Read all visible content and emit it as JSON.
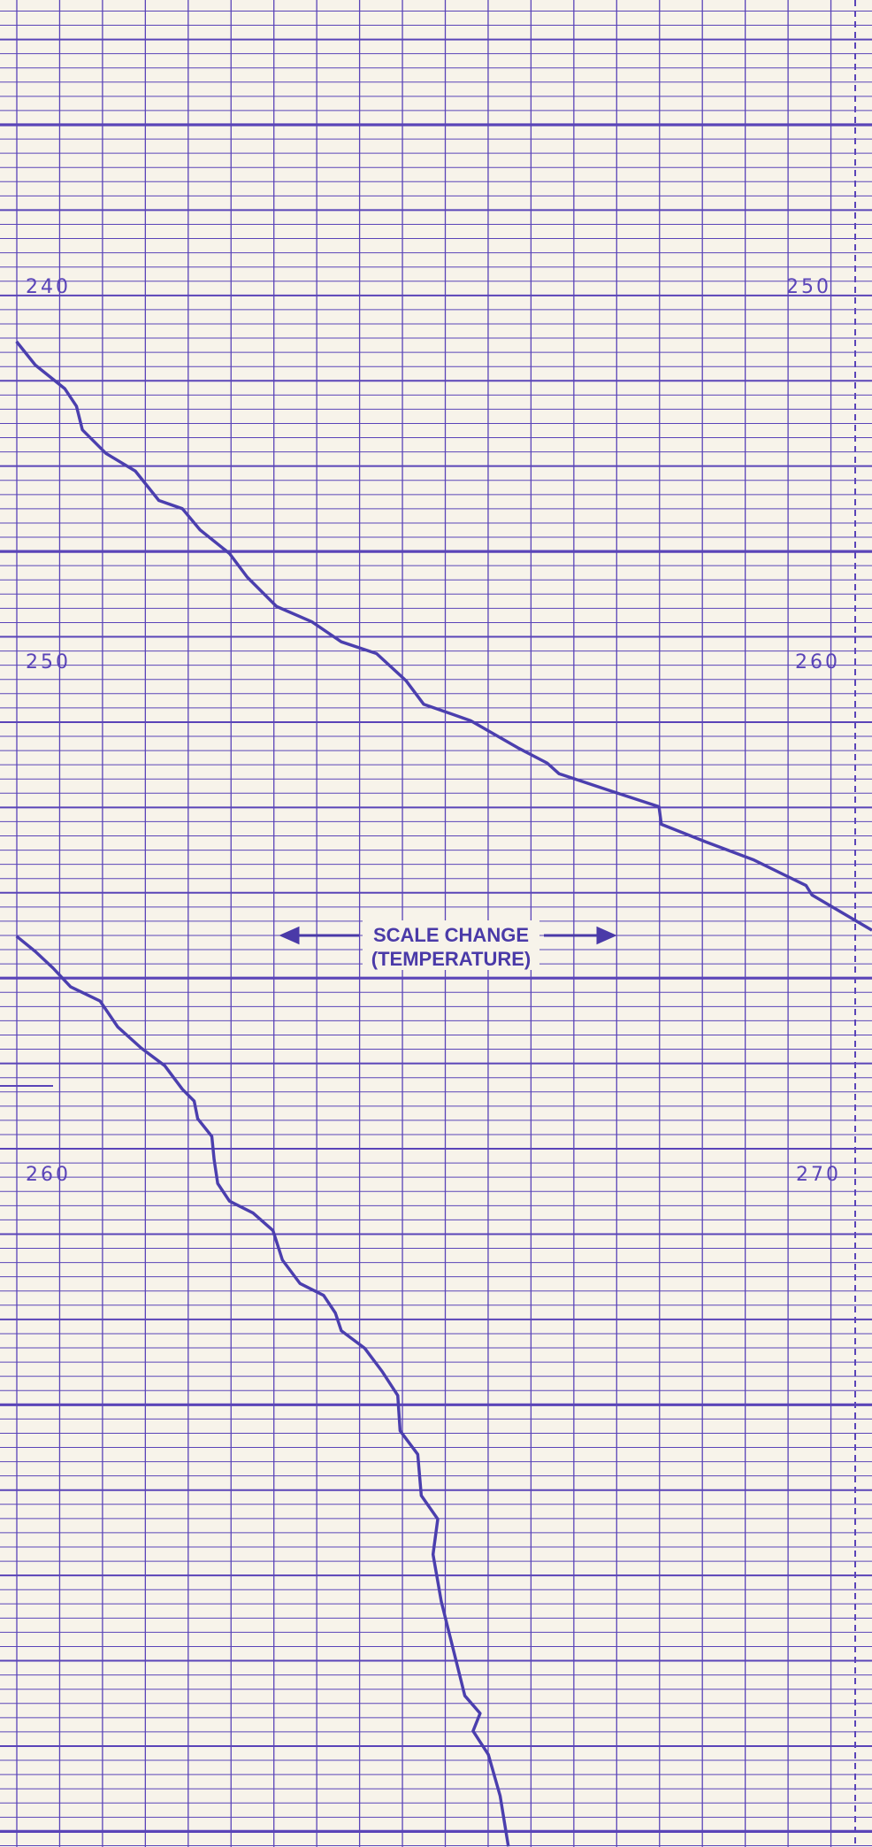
{
  "labels": {
    "left": [
      "240",
      "250",
      "260"
    ],
    "right": [
      "250",
      "260",
      "270"
    ]
  },
  "annotation": {
    "line1": "SCALE CHANGE",
    "line2": "(TEMPERATURE)"
  }
}
